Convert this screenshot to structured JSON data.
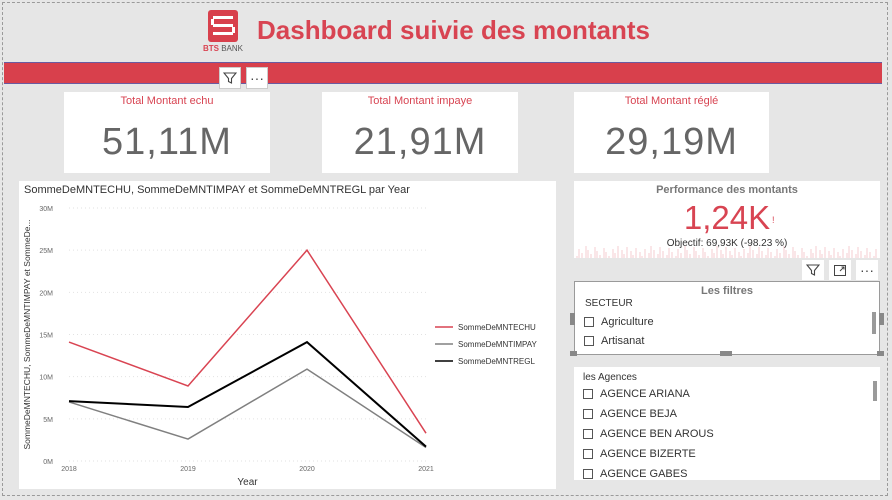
{
  "header": {
    "title": "Dashboard suivie des montants",
    "logo_brand": "BTS",
    "logo_word": "BANK",
    "filter_icon": "filter-icon",
    "more_icon": "more-options-icon"
  },
  "kpis": [
    {
      "label": "Total Montant echu",
      "value": "51,11M"
    },
    {
      "label": "Total Montant impaye",
      "value": "21,91M"
    },
    {
      "label": "Total Montant réglé",
      "value": "29,19M"
    }
  ],
  "colors": {
    "accent": "#d8404c",
    "echu": "#d94452",
    "impay": "#808080",
    "regl": "#000000"
  },
  "chart": {
    "title": "SommeDeMNTECHU, SommeDeMNTIMPAY et SommeDeMNTREGL par Year",
    "ylabel": "SommeDeMNTECHU, SommeDeMNTIMPAY et SommeDe...",
    "xlabel": "Year"
  },
  "chart_data": {
    "type": "line",
    "title": "SommeDeMNTECHU, SommeDeMNTIMPAY et SommeDeMNTREGL par Year",
    "xlabel": "Year",
    "ylabel": "SommeDeMNTECHU, SommeDeMNTIMPAY et SommeDe...",
    "x": [
      "2018",
      "2019",
      "2020",
      "2021"
    ],
    "ylim": [
      0,
      30
    ],
    "yticks": [
      "0M",
      "5M",
      "10M",
      "15M",
      "20M",
      "25M",
      "30M"
    ],
    "grid": true,
    "legend": "right",
    "series": [
      {
        "name": "SommeDeMNTECHU",
        "values": [
          14.1,
          8.9,
          25.0,
          3.3
        ],
        "color": "#d94452"
      },
      {
        "name": "SommeDeMNTIMPAY",
        "values": [
          7.0,
          2.6,
          10.9,
          1.6
        ],
        "color": "#808080"
      },
      {
        "name": "SommeDeMNTREGL",
        "values": [
          7.1,
          6.4,
          14.1,
          1.7
        ],
        "color": "#000000"
      }
    ]
  },
  "performance": {
    "label": "Performance des montants",
    "value": "1,24K",
    "indicator": "!",
    "target": "Objectif: 69,93K (-98.23 %)"
  },
  "visual_toolbar": {
    "filter_icon": "filter-icon",
    "focus_icon": "focus-mode-icon",
    "more_icon": "more-options-icon"
  },
  "filters": {
    "title": "Les filtres",
    "secteur": {
      "header": "SECTEUR",
      "items": [
        "Agriculture",
        "Artisanat"
      ]
    },
    "agences": {
      "header": "les Agences",
      "items": [
        "AGENCE ARIANA",
        "AGENCE BEJA",
        "AGENCE BEN AROUS",
        "AGENCE BIZERTE",
        "AGENCE GABES"
      ]
    }
  }
}
